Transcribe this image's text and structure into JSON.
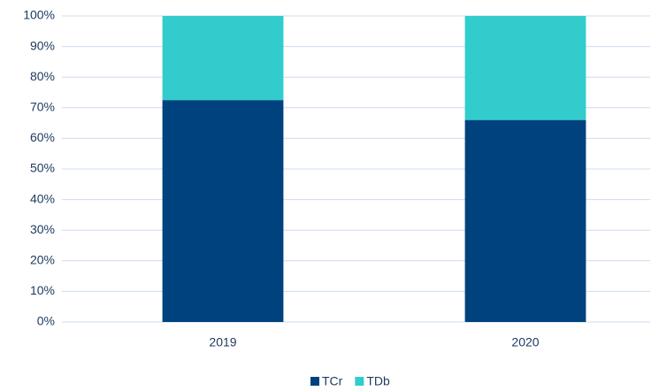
{
  "chart_data": {
    "type": "stacked_bar",
    "categories": [
      "2019",
      "2020"
    ],
    "series": [
      {
        "name": "TCr",
        "color": "#00427e",
        "values": [
          72.5,
          66
        ]
      },
      {
        "name": "TDb",
        "color": "#33cccc",
        "values": [
          27.5,
          34
        ]
      }
    ],
    "ylim": [
      0,
      100
    ],
    "yticks": [
      {
        "value": 0,
        "label": "0%"
      },
      {
        "value": 10,
        "label": "10%"
      },
      {
        "value": 20,
        "label": "20%"
      },
      {
        "value": 30,
        "label": "30%"
      },
      {
        "value": 40,
        "label": "40%"
      },
      {
        "value": 50,
        "label": "50%"
      },
      {
        "value": 60,
        "label": "60%"
      },
      {
        "value": 70,
        "label": "70%"
      },
      {
        "value": 80,
        "label": "80%"
      },
      {
        "value": 90,
        "label": "90%"
      },
      {
        "value": 100,
        "label": "100%"
      }
    ],
    "grid": true,
    "legend": "bottom"
  }
}
